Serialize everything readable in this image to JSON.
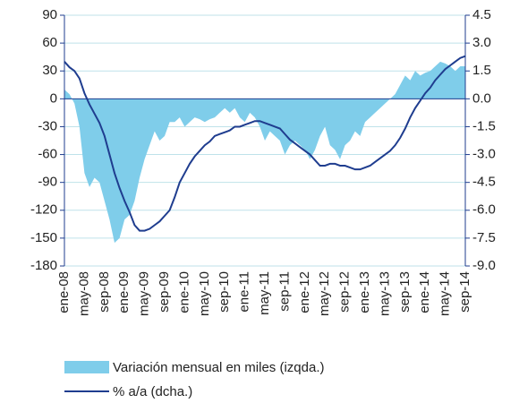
{
  "chart_data": {
    "type": "area_line",
    "categories": [
      "ene-08",
      null,
      null,
      null,
      "may-08",
      null,
      null,
      null,
      "sep-08",
      null,
      null,
      null,
      "ene-09",
      null,
      null,
      null,
      "may-09",
      null,
      null,
      null,
      "sep-09",
      null,
      null,
      null,
      "ene-10",
      null,
      null,
      null,
      "may-10",
      null,
      null,
      null,
      "sep-10",
      null,
      null,
      null,
      "ene-11",
      null,
      null,
      null,
      "may-11",
      null,
      null,
      null,
      "sep-11",
      null,
      null,
      null,
      "ene-12",
      null,
      null,
      null,
      "may-12",
      null,
      null,
      null,
      "sep-12",
      null,
      null,
      null,
      "ene-13",
      null,
      null,
      null,
      "may-13",
      null,
      null,
      null,
      "sep-13",
      null,
      null,
      null,
      "ene-14",
      null,
      null,
      null,
      "may-14",
      null,
      null,
      null,
      "sep-14"
    ],
    "series": [
      {
        "name": "Variación mensual en miles (izqda.)",
        "color": "#7fcdea",
        "axis": "y",
        "values": [
          10,
          5,
          -5,
          -30,
          -80,
          -95,
          -85,
          -90,
          -110,
          -130,
          -155,
          -150,
          -130,
          -125,
          -110,
          -85,
          -65,
          -50,
          -35,
          -45,
          -40,
          -25,
          -25,
          -20,
          -30,
          -25,
          -20,
          -22,
          -25,
          -22,
          -20,
          -15,
          -10,
          -15,
          -10,
          -20,
          -25,
          -15,
          -20,
          -30,
          -45,
          -35,
          -40,
          -45,
          -60,
          -50,
          -45,
          -50,
          -55,
          -65,
          -55,
          -40,
          -30,
          -50,
          -55,
          -65,
          -50,
          -45,
          -35,
          -40,
          -25,
          -20,
          -15,
          -10,
          -5,
          0,
          5,
          15,
          25,
          20,
          30,
          25,
          28,
          30,
          35,
          40,
          38,
          35,
          30,
          35,
          35
        ]
      },
      {
        "name": "% a/a (dcha.)",
        "color": "#1f3d8f",
        "axis": "y2",
        "values": [
          2.0,
          1.7,
          1.5,
          1.1,
          0.3,
          -0.3,
          -0.8,
          -1.3,
          -2.0,
          -3.0,
          -4.0,
          -4.8,
          -5.5,
          -6.1,
          -6.8,
          -7.1,
          -7.1,
          -7.0,
          -6.8,
          -6.6,
          -6.3,
          -6.0,
          -5.3,
          -4.5,
          -4.0,
          -3.5,
          -3.1,
          -2.8,
          -2.5,
          -2.3,
          -2.0,
          -1.9,
          -1.8,
          -1.7,
          -1.5,
          -1.5,
          -1.4,
          -1.3,
          -1.2,
          -1.2,
          -1.3,
          -1.4,
          -1.5,
          -1.6,
          -1.9,
          -2.2,
          -2.4,
          -2.6,
          -2.8,
          -3.0,
          -3.3,
          -3.6,
          -3.6,
          -3.5,
          -3.5,
          -3.6,
          -3.6,
          -3.7,
          -3.8,
          -3.8,
          -3.7,
          -3.6,
          -3.4,
          -3.2,
          -3.0,
          -2.8,
          -2.5,
          -2.1,
          -1.6,
          -1.0,
          -0.5,
          -0.1,
          0.3,
          0.6,
          1.0,
          1.3,
          1.6,
          1.8,
          2.0,
          2.2,
          2.3
        ]
      }
    ],
    "ylim": [
      -180,
      90
    ],
    "yticks": [
      90,
      60,
      30,
      0,
      -30,
      -60,
      -90,
      -120,
      -150,
      -180
    ],
    "y2lim": [
      -9,
      4.5
    ],
    "y2ticks": [
      4.5,
      {
        "value": 3,
        "label": "3.0"
      },
      1.5,
      {
        "value": 0,
        "label": "0.0"
      },
      -1.5,
      {
        "value": -3,
        "label": "-3.0"
      },
      -4.5,
      {
        "value": -6,
        "label": "-6.0"
      },
      -7.5,
      {
        "value": -9,
        "label": "-9.0"
      }
    ],
    "grid": true
  }
}
